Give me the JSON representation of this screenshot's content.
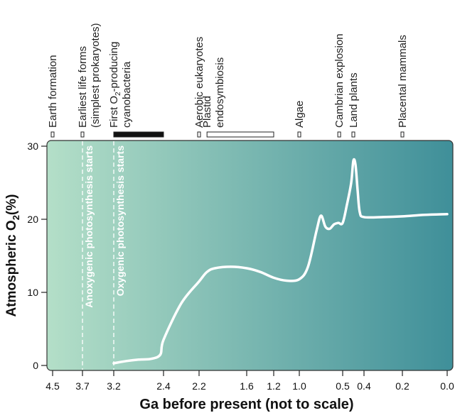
{
  "chart_data": {
    "type": "line",
    "title": "",
    "xlabel": "Ga before present (not to scale)",
    "ylabel_main": "Atmospheric O",
    "ylabel_sub": "2",
    "ylabel_tail": "(%)",
    "ylim": [
      0,
      30
    ],
    "y_ticks": [
      "0",
      "10",
      "20",
      "30"
    ],
    "x_ticks": [
      "4.5",
      "3.7",
      "3.2",
      "2.4",
      "2.2",
      "1.6",
      "1.2",
      "1.0",
      "0.5",
      "0.4",
      "0.2",
      "0.0"
    ],
    "x_axis_note": "non-linear (not to scale) time axis",
    "background_gradient": [
      "#b4dfc8",
      "#3f8f99"
    ],
    "line_color": "#ffffff",
    "vertical_markers": [
      {
        "at": "3.7",
        "label": "Anoxygenic photosynthesis starts"
      },
      {
        "at": "3.2",
        "label": "Oxygenic photosynthesis starts"
      }
    ],
    "events": [
      {
        "lines": [
          "Earth formation"
        ],
        "start": "4.5",
        "end": "4.5",
        "fill": "white"
      },
      {
        "lines": [
          "Earliest life forms",
          "(simplest prokaryotes)"
        ],
        "start": "3.7",
        "end": "3.7",
        "fill": "white"
      },
      {
        "lines": [
          "First O₂-producing",
          "cyanobacteria"
        ],
        "start": "3.2",
        "end": "2.4",
        "fill": "black"
      },
      {
        "lines": [
          "Aerobic eukaryotes"
        ],
        "start": "2.2",
        "end": "2.2",
        "fill": "white"
      },
      {
        "lines": [
          "Plastid",
          "endosymbiosis"
        ],
        "start": "2.1",
        "end": "1.2",
        "fill": "white"
      },
      {
        "lines": [
          "Algae"
        ],
        "start": "1.0",
        "end": "1.0",
        "fill": "white"
      },
      {
        "lines": [
          "Cambrian explosion"
        ],
        "start": "0.54",
        "end": "0.54",
        "fill": "white"
      },
      {
        "lines": [
          "Land plants"
        ],
        "start": "0.45",
        "end": "0.45",
        "fill": "white"
      },
      {
        "lines": [
          "Placental mammals"
        ],
        "start": "0.2",
        "end": "0.2",
        "fill": "white"
      }
    ],
    "series": [
      {
        "x_ga": [
          "3.2",
          "3.0",
          "2.8",
          "2.6",
          "2.45",
          "2.4",
          "2.3",
          "2.2",
          "2.1",
          "2.0",
          "1.8",
          "1.6",
          "1.4",
          "1.2",
          "1.1",
          "1.0",
          "0.9",
          "0.8",
          "0.75",
          "0.7",
          "0.65",
          "0.6",
          "0.55",
          "0.5",
          "0.48",
          "0.46",
          "0.45",
          "0.44",
          "0.43",
          "0.42",
          "0.4",
          "0.3",
          "0.2",
          "0.1",
          "0.0"
        ],
        "y": [
          0.3,
          0.6,
          0.8,
          0.9,
          1.5,
          3.5,
          8.5,
          11.5,
          12.8,
          13.3,
          13.5,
          13.3,
          12.8,
          12.0,
          11.6,
          11.8,
          13.5,
          18.5,
          20.5,
          19.0,
          18.7,
          19.3,
          19.5,
          19.5,
          22.0,
          25.0,
          28.0,
          27.5,
          24.0,
          21.0,
          20.3,
          20.3,
          20.4,
          20.6,
          20.7
        ]
      }
    ]
  }
}
